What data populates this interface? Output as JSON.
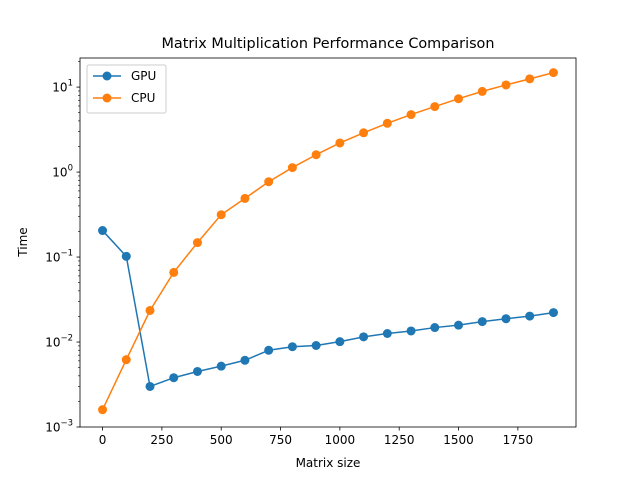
{
  "chart_data": {
    "type": "line",
    "title": "Matrix Multiplication Performance Comparison",
    "xlabel": "Matrix size",
    "ylabel": "Time",
    "xlim": [
      -95,
      1995
    ],
    "ylim": [
      0.001,
      22
    ],
    "yscale": "log",
    "x_ticks": [
      0,
      250,
      500,
      750,
      1000,
      1250,
      1500,
      1750
    ],
    "x_tick_labels": [
      "0",
      "250",
      "500",
      "750",
      "1000",
      "1250",
      "1500",
      "1750"
    ],
    "y_ticks": [
      0.001,
      0.01,
      0.1,
      1,
      10
    ],
    "y_tick_base": [
      "10",
      "10",
      "10",
      "10",
      "10"
    ],
    "y_tick_exp": [
      "−3",
      "−2",
      "−1",
      "0",
      "1"
    ],
    "grid": false,
    "legend_position": "upper-left",
    "x": [
      0,
      100,
      200,
      300,
      400,
      500,
      600,
      700,
      800,
      900,
      1000,
      1100,
      1200,
      1300,
      1400,
      1500,
      1600,
      1700,
      1800,
      1900
    ],
    "series": [
      {
        "name": "GPU",
        "color": "#1f77b4",
        "values": [
          0.205,
          0.102,
          0.003,
          0.0038,
          0.0045,
          0.0052,
          0.0061,
          0.008,
          0.0088,
          0.0091,
          0.0101,
          0.0115,
          0.0126,
          0.0135,
          0.0148,
          0.0158,
          0.0174,
          0.0188,
          0.0202,
          0.0222
        ]
      },
      {
        "name": "CPU",
        "color": "#ff7f0e",
        "values": [
          0.0016,
          0.0062,
          0.0235,
          0.066,
          0.148,
          0.315,
          0.49,
          0.77,
          1.13,
          1.6,
          2.2,
          2.9,
          3.75,
          4.75,
          5.9,
          7.3,
          8.9,
          10.6,
          12.5,
          14.8
        ]
      }
    ]
  }
}
